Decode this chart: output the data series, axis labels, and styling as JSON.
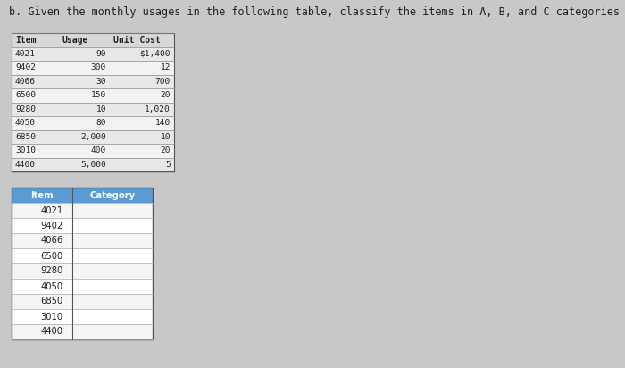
{
  "title": "b. Given the monthly usages in the following table, classify the items in A, B, and C categories according to dollar usage.",
  "title_fontsize": 8.5,
  "table1_headers": [
    "Item",
    "Usage",
    "Unit Cost"
  ],
  "table1_data": [
    [
      "4021",
      "90",
      "$1,400"
    ],
    [
      "9402",
      "300",
      "12"
    ],
    [
      "4066",
      "30",
      "700"
    ],
    [
      "6500",
      "150",
      "20"
    ],
    [
      "9280",
      "10",
      "1,020"
    ],
    [
      "4050",
      "80",
      "140"
    ],
    [
      "6850",
      "2,000",
      "10"
    ],
    [
      "3010",
      "400",
      "20"
    ],
    [
      "4400",
      "5,000",
      "5"
    ]
  ],
  "table2_headers": [
    "Item",
    "Category"
  ],
  "table2_items": [
    "4021",
    "9402",
    "4066",
    "6500",
    "9280",
    "4050",
    "6850",
    "3010",
    "4400"
  ],
  "header_bg": "#5b9bd5",
  "header_text_color": "#ffffff",
  "table1_header_bg": "#d8d8d8",
  "table1_row_bg": "#e8e8e8",
  "table1_row_bg2": "#f2f2f2",
  "table2_row_bg": "#f5f5f5",
  "table2_row_bg2": "#ffffff",
  "border_color": "#888888",
  "text_color": "#222222",
  "figure_bg": "#c8c8c8"
}
